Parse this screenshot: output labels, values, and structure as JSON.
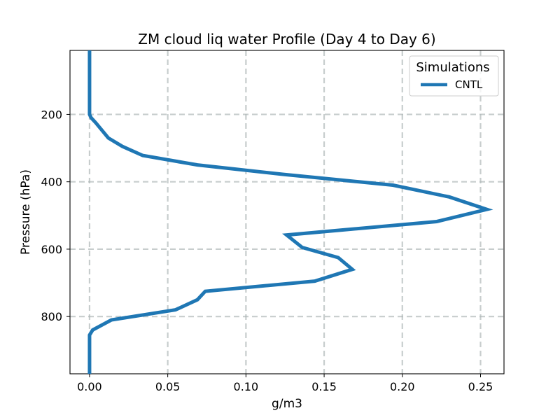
{
  "chart_data": {
    "type": "line",
    "title": "ZM cloud liq water Profile (Day 4 to Day 6)",
    "xlabel": "g/m3",
    "ylabel": "Pressure (hPa)",
    "xlim": [
      -0.0125,
      0.265
    ],
    "ylim": [
      970,
      10
    ],
    "y_inverted": true,
    "xticks": [
      0.0,
      0.05,
      0.1,
      0.15,
      0.2,
      0.25
    ],
    "xtick_labels": [
      "0.00",
      "0.05",
      "0.10",
      "0.15",
      "0.20",
      "0.25"
    ],
    "yticks": [
      200,
      400,
      600,
      800
    ],
    "ytick_labels": [
      "200",
      "400",
      "600",
      "800"
    ],
    "grid": true,
    "legend": {
      "title": "Simulations",
      "position": "top-right"
    },
    "series": [
      {
        "name": "CNTL",
        "color": "#1f77b4",
        "x": [
          0.0,
          0.0,
          0.0,
          0.001,
          0.004,
          0.012,
          0.021,
          0.034,
          0.069,
          0.124,
          0.194,
          0.23,
          0.254,
          0.222,
          0.126,
          0.136,
          0.159,
          0.168,
          0.144,
          0.074,
          0.069,
          0.055,
          0.014,
          0.002,
          0.0,
          0.0,
          0.0
        ],
        "y": [
          10,
          100,
          200,
          210,
          225,
          270,
          295,
          322,
          350,
          378,
          410,
          445,
          482,
          518,
          558,
          595,
          625,
          660,
          695,
          725,
          750,
          780,
          810,
          840,
          855,
          900,
          970
        ]
      }
    ]
  }
}
